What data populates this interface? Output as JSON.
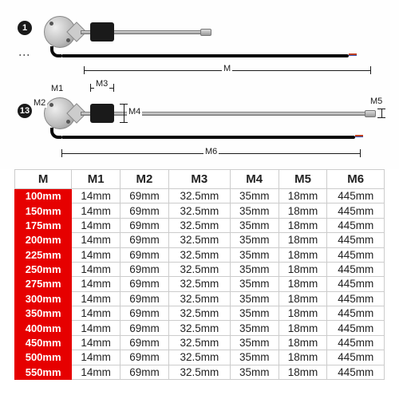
{
  "diagram": {
    "badge1": "1",
    "badge2": "13",
    "labels": {
      "M": "M",
      "M1": "M1",
      "M2": "M2",
      "M3": "M3",
      "M4": "M4",
      "M5": "M5",
      "M6": "M6"
    },
    "colors": {
      "body": "#1a1a1a",
      "metal_light": "#dddddd",
      "metal_dark": "#888888",
      "red_header": "#e60000",
      "wire_red": "#c04020",
      "wire_blue": "#3050b0",
      "grid": "#cccccc"
    }
  },
  "table": {
    "columns": [
      "M",
      "M1",
      "M2",
      "M3",
      "M4",
      "M5",
      "M6"
    ],
    "header_fontsize": 15,
    "cell_fontsize": 13.5,
    "m_col_bg": "#e60000",
    "m_col_color": "#ffffff",
    "rows": [
      [
        "100mm",
        "14mm",
        "69mm",
        "32.5mm",
        "35mm",
        "18mm",
        "445mm"
      ],
      [
        "150mm",
        "14mm",
        "69mm",
        "32.5mm",
        "35mm",
        "18mm",
        "445mm"
      ],
      [
        "175mm",
        "14mm",
        "69mm",
        "32.5mm",
        "35mm",
        "18mm",
        "445mm"
      ],
      [
        "200mm",
        "14mm",
        "69mm",
        "32.5mm",
        "35mm",
        "18mm",
        "445mm"
      ],
      [
        "225mm",
        "14mm",
        "69mm",
        "32.5mm",
        "35mm",
        "18mm",
        "445mm"
      ],
      [
        "250mm",
        "14mm",
        "69mm",
        "32.5mm",
        "35mm",
        "18mm",
        "445mm"
      ],
      [
        "275mm",
        "14mm",
        "69mm",
        "32.5mm",
        "35mm",
        "18mm",
        "445mm"
      ],
      [
        "300mm",
        "14mm",
        "69mm",
        "32.5mm",
        "35mm",
        "18mm",
        "445mm"
      ],
      [
        "350mm",
        "14mm",
        "69mm",
        "32.5mm",
        "35mm",
        "18mm",
        "445mm"
      ],
      [
        "400mm",
        "14mm",
        "69mm",
        "32.5mm",
        "35mm",
        "18mm",
        "445mm"
      ],
      [
        "450mm",
        "14mm",
        "69mm",
        "32.5mm",
        "35mm",
        "18mm",
        "445mm"
      ],
      [
        "500mm",
        "14mm",
        "69mm",
        "32.5mm",
        "35mm",
        "18mm",
        "445mm"
      ],
      [
        "550mm",
        "14mm",
        "69mm",
        "32.5mm",
        "35mm",
        "18mm",
        "445mm"
      ]
    ]
  }
}
